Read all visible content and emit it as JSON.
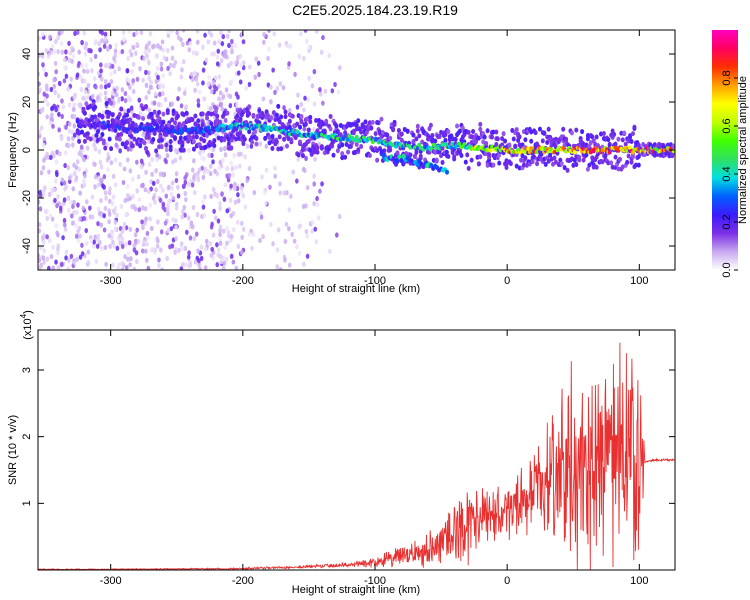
{
  "figure": {
    "title": "C2E5.2025.184.23.19.R19"
  },
  "chart_data": [
    {
      "type": "heatmap",
      "title": "",
      "xlabel": "Height of straight line (km)",
      "ylabel": "Frequency (Hz)",
      "xlim": [
        -355,
        127
      ],
      "ylim": [
        -50,
        50
      ],
      "xticks": [
        -300,
        -200,
        -100,
        0,
        100
      ],
      "yticks": [
        -40,
        -20,
        0,
        20,
        40
      ],
      "colorbar": {
        "label": "Normalized spectral amplitude",
        "range": [
          0.0,
          1.0
        ],
        "ticks": [
          0.0,
          0.2,
          0.4,
          0.6,
          0.8
        ],
        "colormap": [
          "#ffffff",
          "#c8a8f0",
          "#7a2ee6",
          "#3a1cff",
          "#0060ff",
          "#00e0e0",
          "#30e060",
          "#40ff00",
          "#c0ff00",
          "#ffff00",
          "#ffa000",
          "#ff3000",
          "#ff0060",
          "#ff00c0"
        ]
      },
      "ridge": {
        "x": [
          -320,
          -300,
          -280,
          -260,
          -240,
          -220,
          -200,
          -180,
          -160,
          -140,
          -120,
          -100,
          -80,
          -60,
          -40,
          -20,
          0,
          20,
          40,
          60,
          80,
          100,
          127
        ],
        "y": [
          11,
          10,
          9,
          8,
          8,
          9,
          10,
          9,
          7,
          6,
          5,
          4,
          2,
          1,
          2,
          1,
          0,
          0,
          0,
          0,
          0,
          0,
          0
        ],
        "peak_amplitude": [
          0.25,
          0.3,
          0.3,
          0.3,
          0.35,
          0.4,
          0.45,
          0.5,
          0.5,
          0.5,
          0.55,
          0.55,
          0.5,
          0.5,
          0.6,
          0.75,
          0.85,
          0.85,
          0.9,
          0.95,
          0.95,
          0.95,
          0.95
        ]
      },
      "noise_region_x": [
        -355,
        -140
      ]
    },
    {
      "type": "line",
      "title": "",
      "xlabel": "Height of straight line (km)",
      "ylabel": "SNR (10 * v/v)",
      "y_multiplier": "(x10",
      "y_multiplier_exp": "4",
      "y_multiplier_close": ")",
      "xlim": [
        -355,
        127
      ],
      "ylim": [
        0,
        3.6
      ],
      "xticks": [
        -300,
        -200,
        -100,
        0,
        100
      ],
      "yticks": [
        1,
        2,
        3
      ],
      "line_color": "#e83030",
      "series": [
        {
          "x": [
            -355,
            -300,
            -250,
            -200,
            -150,
            -120,
            -100,
            -80,
            -60,
            -50,
            -40,
            -30,
            -20,
            -10,
            0,
            10,
            20,
            30,
            40,
            50,
            60,
            70,
            80,
            90,
            100,
            105,
            110,
            127
          ],
          "y_base": [
            0.01,
            0.01,
            0.015,
            0.02,
            0.05,
            0.08,
            0.12,
            0.2,
            0.3,
            0.45,
            0.55,
            0.7,
            0.75,
            0.8,
            0.9,
            1.0,
            1.2,
            1.35,
            1.45,
            1.5,
            1.55,
            1.6,
            1.6,
            1.6,
            1.6,
            1.62,
            1.65,
            1.65
          ],
          "y_spread": [
            0.01,
            0.01,
            0.01,
            0.02,
            0.03,
            0.05,
            0.1,
            0.2,
            0.3,
            0.5,
            0.6,
            0.7,
            0.6,
            0.5,
            0.5,
            0.6,
            0.7,
            0.9,
            1.2,
            1.5,
            2.0,
            1.8,
            1.6,
            1.7,
            1.6,
            0.02,
            0.02,
            0.02
          ],
          "y_max": 3.55
        }
      ]
    }
  ]
}
